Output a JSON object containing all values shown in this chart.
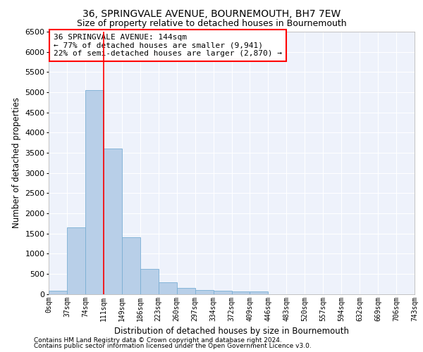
{
  "title": "36, SPRINGVALE AVENUE, BOURNEMOUTH, BH7 7EW",
  "subtitle": "Size of property relative to detached houses in Bournemouth",
  "xlabel": "Distribution of detached houses by size in Bournemouth",
  "ylabel": "Number of detached properties",
  "bar_values": [
    75,
    1650,
    5050,
    3600,
    1400,
    620,
    290,
    140,
    100,
    70,
    55,
    55,
    0,
    0,
    0,
    0,
    0,
    0,
    0,
    0
  ],
  "x_labels": [
    "0sqm",
    "37sqm",
    "74sqm",
    "111sqm",
    "149sqm",
    "186sqm",
    "223sqm",
    "260sqm",
    "297sqm",
    "334sqm",
    "372sqm",
    "409sqm",
    "446sqm",
    "483sqm",
    "520sqm",
    "557sqm",
    "594sqm",
    "632sqm",
    "669sqm",
    "706sqm",
    "743sqm"
  ],
  "bar_color": "#b8cfe8",
  "bar_edge_color": "#7aaed4",
  "background_color": "#eef2fb",
  "grid_color": "#ffffff",
  "vline_x": 3,
  "vline_color": "red",
  "annotation_text": "36 SPRINGVALE AVENUE: 144sqm\n← 77% of detached houses are smaller (9,941)\n22% of semi-detached houses are larger (2,870) →",
  "annotation_box_color": "white",
  "annotation_box_edge": "red",
  "ylim": [
    0,
    6500
  ],
  "yticks": [
    0,
    500,
    1000,
    1500,
    2000,
    2500,
    3000,
    3500,
    4000,
    4500,
    5000,
    5500,
    6000,
    6500
  ],
  "title_fontsize": 10,
  "subtitle_fontsize": 9,
  "footnote1": "Contains HM Land Registry data © Crown copyright and database right 2024.",
  "footnote2": "Contains public sector information licensed under the Open Government Licence v3.0."
}
